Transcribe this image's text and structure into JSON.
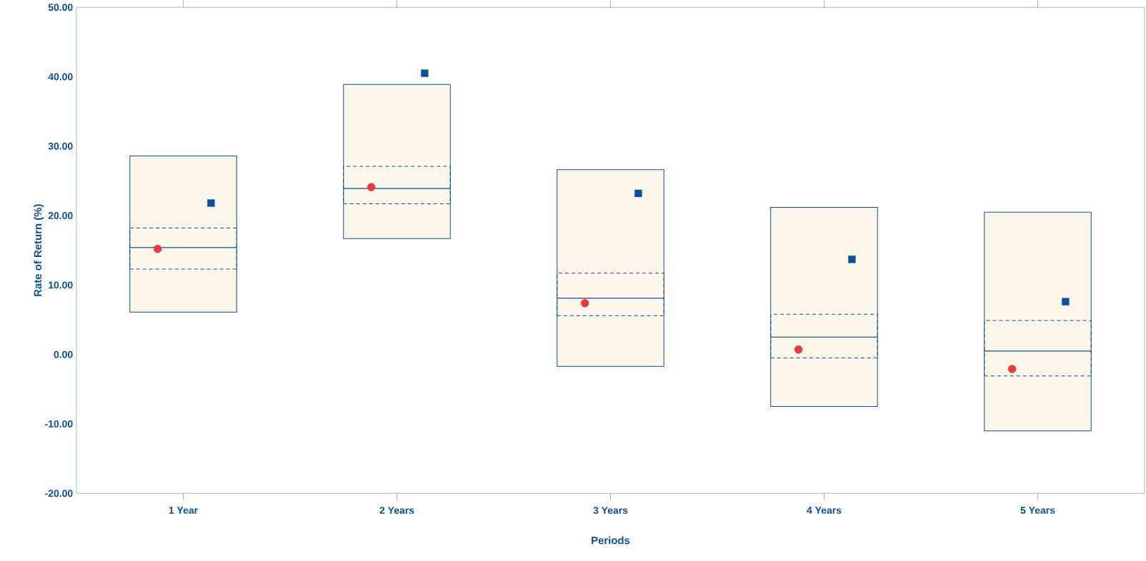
{
  "chart_data": {
    "type": "bar",
    "xlabel": "Periods",
    "ylabel": "Rate of Return (%)",
    "categories": [
      "1 Year",
      "2 Years",
      "3 Years",
      "4 Years",
      "5 Years"
    ],
    "ylim": [
      -20,
      50
    ],
    "yticks": [
      {
        "value": -20,
        "label": "-20.00"
      },
      {
        "value": -10,
        "label": "-10.00"
      },
      {
        "value": 0,
        "label": "0.00"
      },
      {
        "value": 10,
        "label": "10.00"
      },
      {
        "value": 20,
        "label": "20.00"
      },
      {
        "value": 30,
        "label": "30.00"
      },
      {
        "value": 40,
        "label": "40.00"
      },
      {
        "value": 50,
        "label": "50.00"
      }
    ],
    "grid": false,
    "series": [
      {
        "color": "#fbf7e8",
        "line_style": "solid",
        "base": [
          6.1,
          16.7,
          -1.7,
          -7.5,
          -11.0
        ],
        "values": [
          9.3,
          7.2,
          9.8,
          10.0,
          11.5
        ]
      },
      {
        "color": "#fbf7e8",
        "line_style": "solid",
        "base": [
          15.4,
          23.9,
          8.1,
          2.5,
          0.5
        ],
        "values": [
          13.2,
          15.0,
          18.5,
          18.7,
          20.0
        ]
      },
      {
        "color": "#0a4f9c",
        "line_style": "dashed",
        "base": [
          12.3,
          21.7,
          5.6,
          -0.5,
          -3.1
        ],
        "values": [
          5.9,
          5.4,
          6.1,
          6.3,
          8.0
        ]
      },
      {
        "type": "scatter",
        "marker": "circle",
        "color": "#e8393f",
        "x": [
          "1 Year",
          "2 Years",
          "3 Years",
          "4 Years",
          "5 Years"
        ],
        "values": [
          15.2,
          24.1,
          7.4,
          0.7,
          -2.1
        ]
      },
      {
        "type": "scatter",
        "marker": "square",
        "color": "#0a50a0",
        "x": [
          "1 Year",
          "2 Years",
          "3 Years",
          "4 Years",
          "5 Years"
        ],
        "values": [
          21.8,
          40.5,
          23.2,
          13.7,
          7.6
        ]
      }
    ]
  }
}
